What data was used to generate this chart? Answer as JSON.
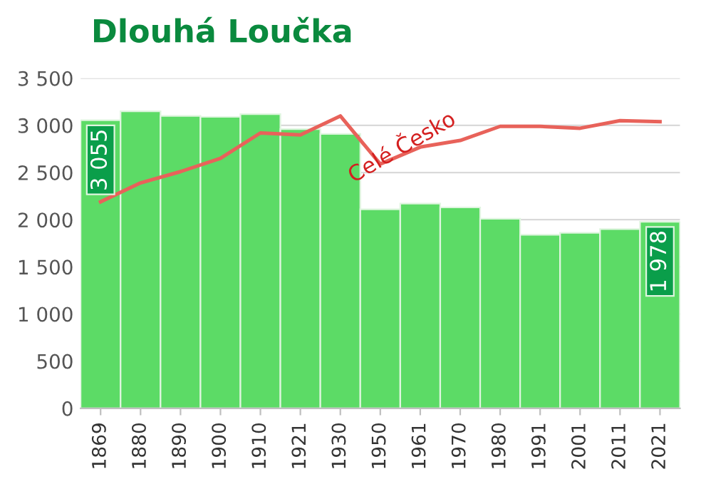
{
  "chart_data": {
    "type": "bar",
    "title": "Dlouhá Loučka",
    "categories": [
      "1869",
      "1880",
      "1890",
      "1900",
      "1910",
      "1921",
      "1930",
      "1950",
      "1961",
      "1970",
      "1980",
      "1991",
      "2001",
      "2011",
      "2021"
    ],
    "series": [
      {
        "color": "#5cdb66",
        "values": [
          3055,
          3150,
          3100,
          3090,
          3120,
          2960,
          2910,
          2110,
          2170,
          2130,
          2010,
          1840,
          1860,
          1900,
          1978
        ],
        "value_labels": [
          "3 055",
          null,
          null,
          null,
          null,
          null,
          null,
          null,
          null,
          null,
          null,
          null,
          null,
          null,
          "1 978"
        ]
      },
      {
        "type": "line",
        "name": "Celé Česko",
        "color": "#e8625a",
        "values": [
          2190,
          2390,
          2510,
          2650,
          2920,
          2900,
          3100,
          2590,
          2770,
          2840,
          2990,
          2990,
          2970,
          3050,
          3040
        ]
      }
    ],
    "ylim": [
      0,
      3500
    ],
    "yticks": [
      0,
      500,
      {
        "value": 1000,
        "label": "1 000"
      },
      {
        "value": 1500,
        "label": "1 500"
      },
      {
        "value": 2000,
        "label": "2 000"
      },
      {
        "value": 2500,
        "label": "2 500"
      },
      {
        "value": 3000,
        "label": "3 000"
      },
      {
        "value": 3500,
        "label": "3 500"
      }
    ],
    "grid": "y",
    "legend": false
  }
}
